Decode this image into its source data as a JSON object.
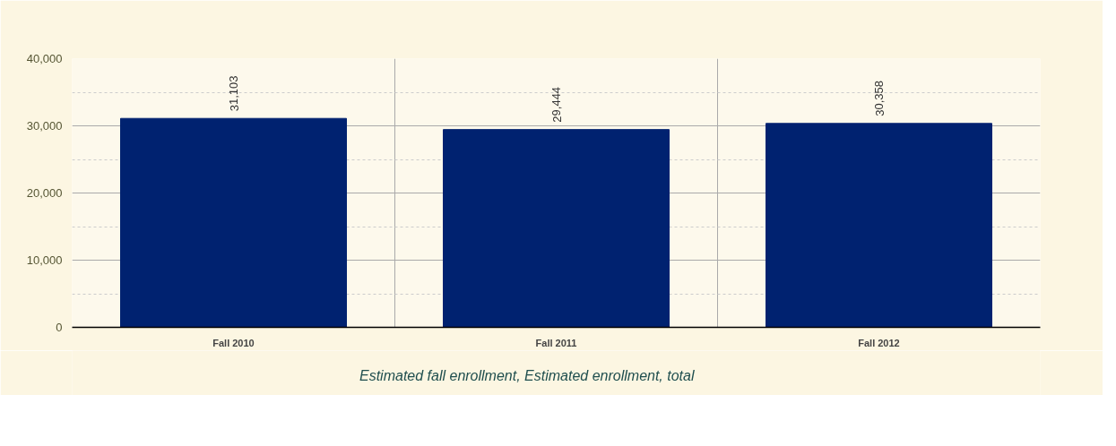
{
  "chart_data": {
    "type": "bar",
    "categories": [
      "Fall 2010",
      "Fall 2011",
      "Fall 2012"
    ],
    "series": [
      {
        "name": "Estimated fall enrollment, Estimated enrollment, total",
        "color": "#002270",
        "values": [
          31103,
          29444,
          30358
        ]
      }
    ],
    "ylim": [
      0,
      40000
    ],
    "yticks": [
      {
        "value": 0,
        "label": "0"
      },
      {
        "value": 10000,
        "label": "10,000"
      },
      {
        "value": 20000,
        "label": "20,000"
      },
      {
        "value": 30000,
        "label": "30,000"
      },
      {
        "value": 40000,
        "label": "40,000"
      }
    ],
    "value_labels": [
      "31,103",
      "29,444",
      "30,358"
    ],
    "grid": true,
    "legend": "bottom"
  }
}
